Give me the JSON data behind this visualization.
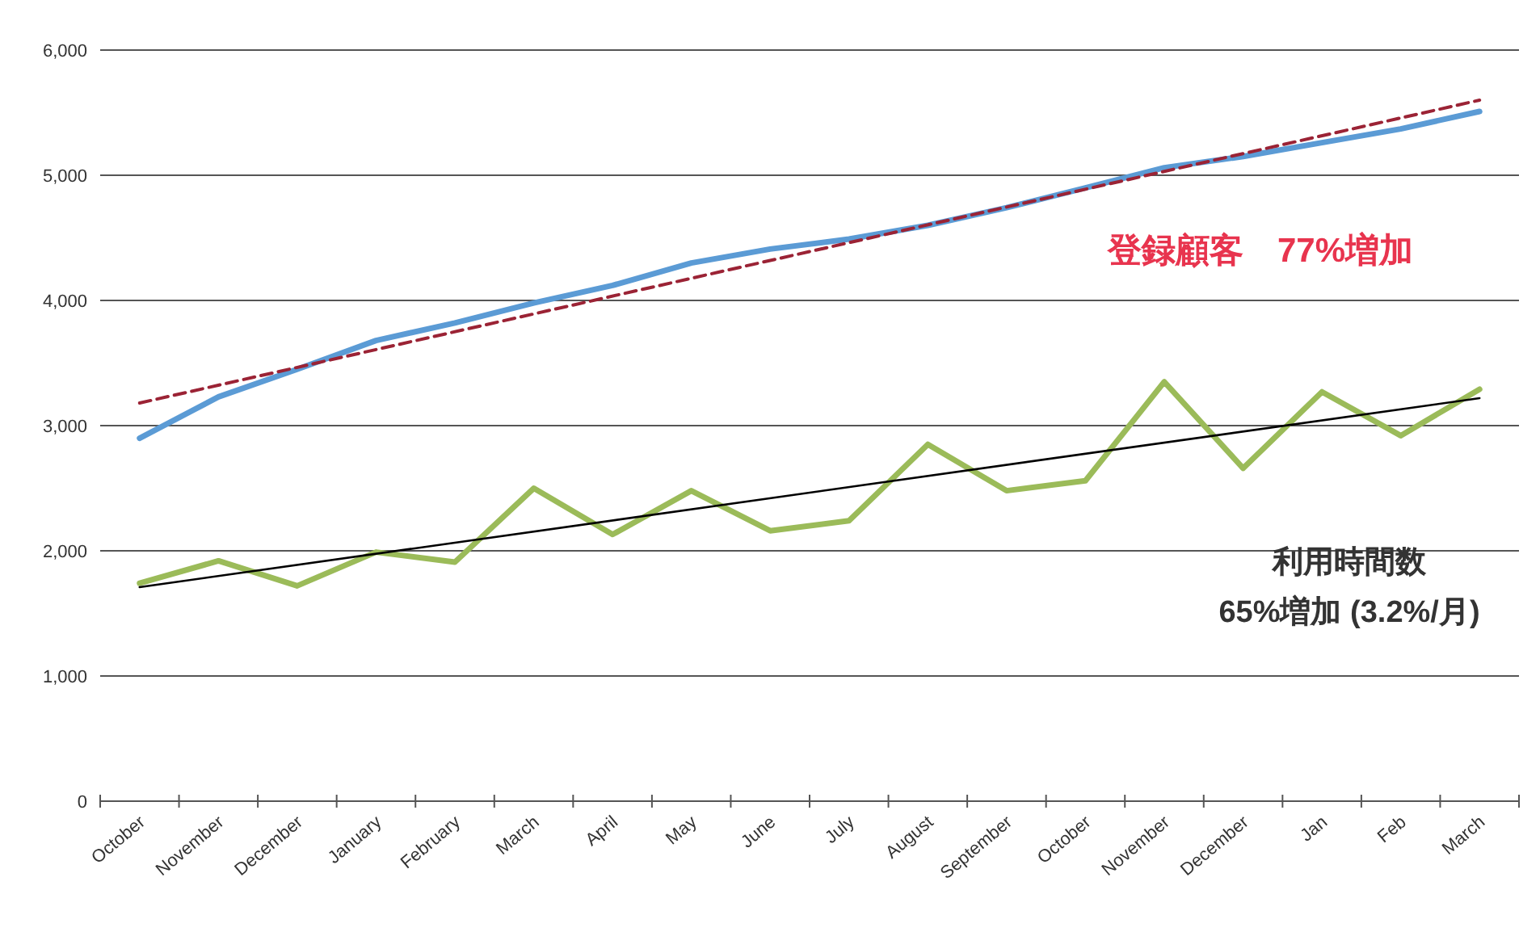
{
  "chart_data": {
    "type": "line",
    "categories": [
      "October",
      "November",
      "December",
      "January",
      "February",
      "March",
      "April",
      "May",
      "June",
      "July",
      "August",
      "September",
      "October",
      "November",
      "December",
      "Jan",
      "Feb",
      "March"
    ],
    "series": [
      {
        "color": "#5b9bd5",
        "values": [
          2900,
          3230,
          3450,
          3680,
          3820,
          3980,
          4120,
          4300,
          4410,
          4490,
          4600,
          4740,
          4900,
          5060,
          5150,
          5260,
          5370,
          5510
        ]
      },
      {
        "color": "#9bbb59",
        "values": [
          1740,
          1920,
          1720,
          1990,
          1910,
          2500,
          2130,
          2480,
          2160,
          2240,
          2850,
          2480,
          2560,
          3350,
          2660,
          3270,
          2920,
          3290
        ]
      },
      {
        "type": "line",
        "color": "#9b2335",
        "line_style": "dashed",
        "values": [
          3180,
          null,
          null,
          null,
          null,
          null,
          null,
          null,
          null,
          null,
          null,
          null,
          null,
          null,
          null,
          null,
          null,
          5600
        ]
      },
      {
        "type": "line",
        "color": "#000000",
        "values": [
          1710,
          null,
          null,
          null,
          null,
          null,
          null,
          null,
          null,
          null,
          null,
          null,
          null,
          null,
          null,
          null,
          null,
          3220
        ]
      }
    ],
    "ylim": [
      0,
      6000
    ],
    "yticks": [
      {
        "value": 0,
        "label": "0"
      },
      {
        "value": 1000,
        "label": "1,000"
      },
      {
        "value": 2000,
        "label": "2,000"
      },
      {
        "value": 3000,
        "label": "3,000"
      },
      {
        "value": 4000,
        "label": "4,000"
      },
      {
        "value": 5000,
        "label": "5,000"
      },
      {
        "value": 6000,
        "label": "6,000"
      }
    ],
    "grid": "y",
    "annotations": [
      "登録顧客　77%増加",
      "利用時間数",
      "65%増加 (3.2%/月)"
    ]
  }
}
